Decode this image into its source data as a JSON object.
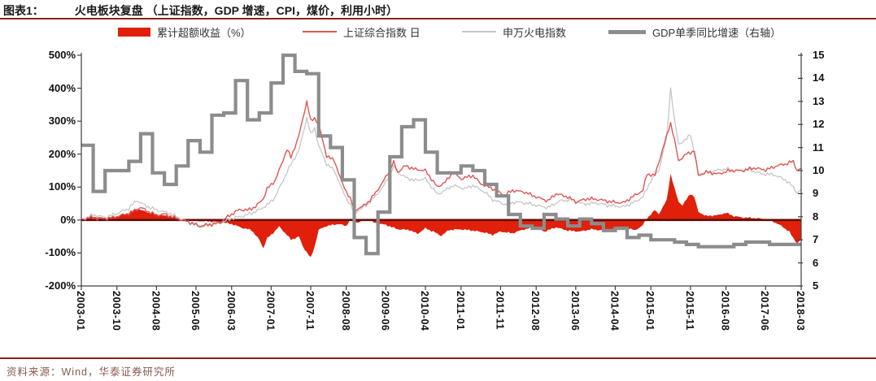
{
  "header": {
    "figure_label": "图表1：",
    "title": "火电板块复盘 （上证指数，GDP 增速，CPI，煤价，利用小时）"
  },
  "footer": {
    "source": "资料来源：Wind，华泰证券研究所"
  },
  "colors": {
    "accent_rule": "#8b231a",
    "excess_area": "#e0200a",
    "sse_line": "#e05555",
    "thermal_line": "#c6c6c6",
    "gdp_line": "#8c8c8c",
    "zero_line": "#5e0f08",
    "axis": "#404040"
  },
  "legend": [
    {
      "label": "累计超额收益（%）",
      "type": "area",
      "color": "#e0200a"
    },
    {
      "label": "上证综合指数 日",
      "type": "line",
      "color": "#e05555"
    },
    {
      "label": "申万火电指数",
      "type": "line",
      "color": "#c6c6c6"
    },
    {
      "label": "GDP单季同比增速（右轴）",
      "type": "thick",
      "color": "#8c8c8c"
    }
  ],
  "chart_data": {
    "type": "line",
    "title": "火电板块复盘",
    "grid": false,
    "legend_position": "top",
    "left_axis": {
      "min": -200,
      "max": 500,
      "tick_step": 100,
      "tick_labels": [
        "500%",
        "400%",
        "300%",
        "200%",
        "100%",
        "0%",
        "-100%",
        "-200%"
      ]
    },
    "right_axis": {
      "min": 5,
      "max": 15,
      "tick_step": 1,
      "tick_labels": [
        "15",
        "14",
        "13",
        "12",
        "11",
        "10",
        "9",
        "8",
        "7",
        "6",
        "5"
      ]
    },
    "x_axis": {
      "start": "2003-01",
      "end": "2018-03",
      "tick_labels": [
        "2003-01",
        "2003-10",
        "2004-08",
        "2005-06",
        "2006-03",
        "2007-01",
        "2007-11",
        "2008-08",
        "2009-06",
        "2010-04",
        "2011-01",
        "2011-11",
        "2012-08",
        "2013-06",
        "2014-04",
        "2015-01",
        "2015-11",
        "2016-08",
        "2017-06",
        "2018-03"
      ]
    },
    "series": [
      {
        "name": "累计超额收益（%）",
        "axis": "left",
        "style": "area",
        "unit": "%",
        "points": [
          [
            "2003-01",
            0
          ],
          [
            "2003-04",
            10
          ],
          [
            "2003-07",
            6
          ],
          [
            "2003-10",
            12
          ],
          [
            "2004-01",
            22
          ],
          [
            "2004-03",
            35
          ],
          [
            "2004-06",
            22
          ],
          [
            "2004-09",
            15
          ],
          [
            "2004-12",
            10
          ],
          [
            "2005-03",
            2
          ],
          [
            "2005-06",
            -3
          ],
          [
            "2005-09",
            -4
          ],
          [
            "2005-12",
            -6
          ],
          [
            "2006-03",
            -12
          ],
          [
            "2006-06",
            -25
          ],
          [
            "2006-08",
            -30
          ],
          [
            "2006-10",
            -60
          ],
          [
            "2006-11",
            -85
          ],
          [
            "2006-12",
            -55
          ],
          [
            "2007-01",
            -45
          ],
          [
            "2007-03",
            -20
          ],
          [
            "2007-05",
            -45
          ],
          [
            "2007-06",
            -60
          ],
          [
            "2007-08",
            -50
          ],
          [
            "2007-09",
            -80
          ],
          [
            "2007-11",
            -115
          ],
          [
            "2007-12",
            -80
          ],
          [
            "2008-01",
            -30
          ],
          [
            "2008-03",
            -18
          ],
          [
            "2008-06",
            -12
          ],
          [
            "2008-08",
            -18
          ],
          [
            "2008-09",
            3
          ],
          [
            "2008-11",
            -8
          ],
          [
            "2009-01",
            5
          ],
          [
            "2009-03",
            -8
          ],
          [
            "2009-06",
            -15
          ],
          [
            "2009-09",
            -28
          ],
          [
            "2009-12",
            -30
          ],
          [
            "2010-02",
            -42
          ],
          [
            "2010-04",
            -25
          ],
          [
            "2010-06",
            -35
          ],
          [
            "2010-08",
            -48
          ],
          [
            "2010-10",
            -30
          ],
          [
            "2011-01",
            -28
          ],
          [
            "2011-04",
            -32
          ],
          [
            "2011-07",
            -38
          ],
          [
            "2011-09",
            -45
          ],
          [
            "2011-11",
            -35
          ],
          [
            "2012-02",
            -40
          ],
          [
            "2012-05",
            -28
          ],
          [
            "2012-08",
            -22
          ],
          [
            "2012-10",
            -35
          ],
          [
            "2013-01",
            -22
          ],
          [
            "2013-04",
            -32
          ],
          [
            "2013-07",
            -35
          ],
          [
            "2013-10",
            -28
          ],
          [
            "2014-01",
            -32
          ],
          [
            "2014-04",
            -28
          ],
          [
            "2014-07",
            -22
          ],
          [
            "2014-09",
            -32
          ],
          [
            "2014-11",
            -15
          ],
          [
            "2014-12",
            5
          ],
          [
            "2015-02",
            30
          ],
          [
            "2015-03",
            18
          ],
          [
            "2015-05",
            60
          ],
          [
            "2015-06",
            140
          ],
          [
            "2015-07",
            95
          ],
          [
            "2015-08",
            55
          ],
          [
            "2015-09",
            45
          ],
          [
            "2015-11",
            80
          ],
          [
            "2015-12",
            70
          ],
          [
            "2016-01",
            25
          ],
          [
            "2016-03",
            12
          ],
          [
            "2016-06",
            15
          ],
          [
            "2016-08",
            22
          ],
          [
            "2016-10",
            12
          ],
          [
            "2016-12",
            8
          ],
          [
            "2017-03",
            6
          ],
          [
            "2017-06",
            3
          ],
          [
            "2017-08",
            -5
          ],
          [
            "2017-10",
            -18
          ],
          [
            "2017-12",
            -35
          ],
          [
            "2018-01",
            -55
          ],
          [
            "2018-02",
            -70
          ],
          [
            "2018-03",
            -60
          ]
        ]
      },
      {
        "name": "上证综合指数 日",
        "axis": "left",
        "style": "line",
        "unit": "%",
        "points": [
          [
            "2003-01",
            0
          ],
          [
            "2003-03",
            8
          ],
          [
            "2003-06",
            3
          ],
          [
            "2003-09",
            7
          ],
          [
            "2003-11",
            14
          ],
          [
            "2004-01",
            20
          ],
          [
            "2004-04",
            38
          ],
          [
            "2004-06",
            25
          ],
          [
            "2004-08",
            15
          ],
          [
            "2004-10",
            18
          ],
          [
            "2005-01",
            5
          ],
          [
            "2005-04",
            -5
          ],
          [
            "2005-07",
            -18
          ],
          [
            "2005-10",
            -12
          ],
          [
            "2005-12",
            -8
          ],
          [
            "2006-02",
            10
          ],
          [
            "2006-05",
            32
          ],
          [
            "2006-07",
            30
          ],
          [
            "2006-09",
            40
          ],
          [
            "2006-11",
            65
          ],
          [
            "2006-12",
            95
          ],
          [
            "2007-02",
            120
          ],
          [
            "2007-03",
            150
          ],
          [
            "2007-05",
            215
          ],
          [
            "2007-06",
            190
          ],
          [
            "2007-08",
            255
          ],
          [
            "2007-10",
            360
          ],
          [
            "2007-11",
            300
          ],
          [
            "2007-12",
            310
          ],
          [
            "2008-01",
            290
          ],
          [
            "2008-03",
            195
          ],
          [
            "2008-05",
            180
          ],
          [
            "2008-07",
            110
          ],
          [
            "2008-09",
            65
          ],
          [
            "2008-10",
            30
          ],
          [
            "2008-12",
            40
          ],
          [
            "2009-02",
            60
          ],
          [
            "2009-05",
            110
          ],
          [
            "2009-08",
            175
          ],
          [
            "2009-09",
            145
          ],
          [
            "2009-11",
            165
          ],
          [
            "2010-01",
            155
          ],
          [
            "2010-04",
            150
          ],
          [
            "2010-07",
            100
          ],
          [
            "2010-09",
            115
          ],
          [
            "2010-11",
            145
          ],
          [
            "2011-01",
            125
          ],
          [
            "2011-04",
            135
          ],
          [
            "2011-06",
            110
          ],
          [
            "2011-09",
            95
          ],
          [
            "2011-12",
            75
          ],
          [
            "2012-02",
            90
          ],
          [
            "2012-05",
            85
          ],
          [
            "2012-08",
            70
          ],
          [
            "2012-11",
            58
          ],
          [
            "2013-01",
            80
          ],
          [
            "2013-04",
            70
          ],
          [
            "2013-06",
            55
          ],
          [
            "2013-09",
            65
          ],
          [
            "2013-12",
            62
          ],
          [
            "2014-03",
            55
          ],
          [
            "2014-06",
            52
          ],
          [
            "2014-09",
            75
          ],
          [
            "2014-11",
            90
          ],
          [
            "2014-12",
            140
          ],
          [
            "2015-02",
            135
          ],
          [
            "2015-04",
            215
          ],
          [
            "2015-06",
            295
          ],
          [
            "2015-07",
            240
          ],
          [
            "2015-08",
            180
          ],
          [
            "2015-10",
            200
          ],
          [
            "2015-12",
            210
          ],
          [
            "2016-01",
            135
          ],
          [
            "2016-03",
            145
          ],
          [
            "2016-06",
            140
          ],
          [
            "2016-09",
            150
          ],
          [
            "2016-12",
            150
          ],
          [
            "2017-03",
            158
          ],
          [
            "2017-06",
            152
          ],
          [
            "2017-09",
            165
          ],
          [
            "2017-11",
            170
          ],
          [
            "2018-01",
            178
          ],
          [
            "2018-02",
            150
          ],
          [
            "2018-03",
            156
          ]
        ]
      },
      {
        "name": "申万火电指数",
        "axis": "left",
        "style": "line",
        "unit": "%",
        "points": [
          [
            "2003-01",
            0
          ],
          [
            "2003-04",
            16
          ],
          [
            "2003-07",
            8
          ],
          [
            "2003-10",
            20
          ],
          [
            "2004-01",
            35
          ],
          [
            "2004-03",
            60
          ],
          [
            "2004-05",
            45
          ],
          [
            "2004-08",
            30
          ],
          [
            "2004-11",
            22
          ],
          [
            "2005-02",
            5
          ],
          [
            "2005-05",
            -12
          ],
          [
            "2005-07",
            -22
          ],
          [
            "2005-10",
            -15
          ],
          [
            "2005-12",
            -10
          ],
          [
            "2006-03",
            5
          ],
          [
            "2006-06",
            12
          ],
          [
            "2006-09",
            25
          ],
          [
            "2006-12",
            45
          ],
          [
            "2007-02",
            70
          ],
          [
            "2007-04",
            120
          ],
          [
            "2007-06",
            170
          ],
          [
            "2007-08",
            210
          ],
          [
            "2007-10",
            310
          ],
          [
            "2007-11",
            260
          ],
          [
            "2007-12",
            280
          ],
          [
            "2008-01",
            225
          ],
          [
            "2008-03",
            170
          ],
          [
            "2008-05",
            150
          ],
          [
            "2008-07",
            90
          ],
          [
            "2008-09",
            45
          ],
          [
            "2008-10",
            22
          ],
          [
            "2008-12",
            35
          ],
          [
            "2009-02",
            55
          ],
          [
            "2009-05",
            95
          ],
          [
            "2009-08",
            160
          ],
          [
            "2009-10",
            135
          ],
          [
            "2010-01",
            120
          ],
          [
            "2010-04",
            125
          ],
          [
            "2010-07",
            78
          ],
          [
            "2010-09",
            90
          ],
          [
            "2010-11",
            105
          ],
          [
            "2011-02",
            95
          ],
          [
            "2011-04",
            105
          ],
          [
            "2011-07",
            85
          ],
          [
            "2011-09",
            62
          ],
          [
            "2011-12",
            48
          ],
          [
            "2012-03",
            55
          ],
          [
            "2012-06",
            50
          ],
          [
            "2012-09",
            42
          ],
          [
            "2012-11",
            38
          ],
          [
            "2013-02",
            58
          ],
          [
            "2013-05",
            62
          ],
          [
            "2013-08",
            48
          ],
          [
            "2013-11",
            52
          ],
          [
            "2014-02",
            45
          ],
          [
            "2014-06",
            40
          ],
          [
            "2014-09",
            55
          ],
          [
            "2014-11",
            70
          ],
          [
            "2015-01",
            120
          ],
          [
            "2015-03",
            150
          ],
          [
            "2015-05",
            250
          ],
          [
            "2015-06",
            400
          ],
          [
            "2015-07",
            300
          ],
          [
            "2015-08",
            230
          ],
          [
            "2015-10",
            245
          ],
          [
            "2015-11",
            262
          ],
          [
            "2016-01",
            140
          ],
          [
            "2016-04",
            148
          ],
          [
            "2016-08",
            155
          ],
          [
            "2016-11",
            148
          ],
          [
            "2017-02",
            152
          ],
          [
            "2017-05",
            140
          ],
          [
            "2017-08",
            138
          ],
          [
            "2017-11",
            122
          ],
          [
            "2018-01",
            100
          ],
          [
            "2018-02",
            82
          ],
          [
            "2018-03",
            92
          ]
        ]
      },
      {
        "name": "GDP单季同比增速（右轴）",
        "axis": "right",
        "style": "step",
        "unit": "%",
        "start_quarter": "2003Q1",
        "quarterly_values": [
          11.1,
          9.1,
          10.0,
          10.0,
          10.4,
          11.6,
          9.9,
          9.4,
          10.2,
          11.3,
          10.8,
          12.4,
          12.5,
          13.9,
          12.2,
          12.5,
          13.8,
          15.0,
          14.3,
          14.2,
          11.5,
          11.0,
          9.6,
          7.1,
          6.4,
          8.2,
          10.6,
          11.9,
          12.2,
          10.8,
          9.9,
          9.9,
          10.2,
          10.0,
          9.4,
          8.9,
          8.1,
          7.6,
          7.5,
          8.1,
          7.9,
          7.6,
          7.9,
          7.7,
          7.4,
          7.5,
          7.1,
          7.2,
          7.0,
          7.0,
          6.9,
          6.8,
          6.7,
          6.7,
          6.7,
          6.8,
          6.9,
          6.9,
          6.8,
          6.8,
          6.8
        ]
      }
    ]
  }
}
